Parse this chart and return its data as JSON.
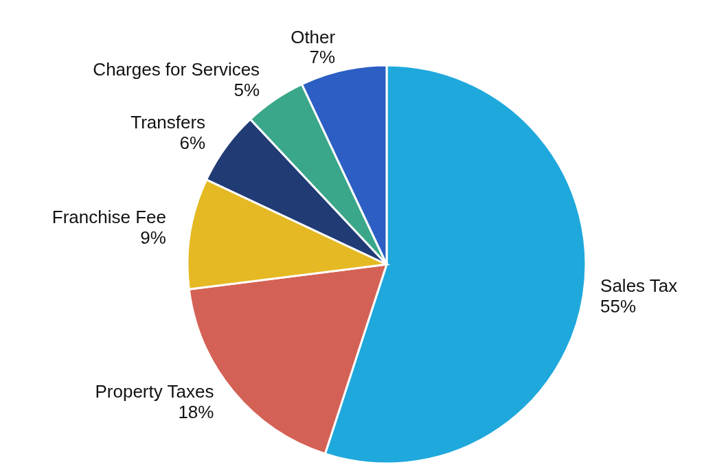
{
  "chart_data": {
    "type": "pie",
    "categories": [
      "Sales Tax",
      "Property Taxes",
      "Franchise Fee",
      "Transfers",
      "Charges for Services",
      "Other"
    ],
    "values": [
      55,
      18,
      9,
      6,
      5,
      7
    ],
    "colors": [
      "#1fa8dc",
      "#d46155",
      "#e5b923",
      "#213b75",
      "#3aa78a",
      "#2c5ec4"
    ],
    "value_labels": [
      "55%",
      "18%",
      "9%",
      "6%",
      "5%",
      "7%"
    ],
    "legend": false
  }
}
